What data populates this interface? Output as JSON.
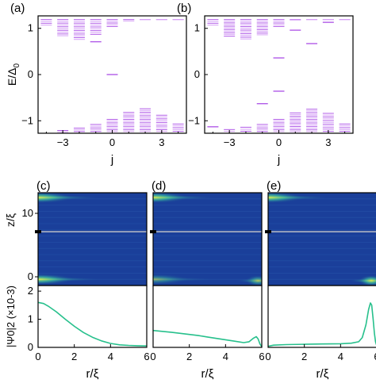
{
  "figure": {
    "watermark": "",
    "colors": {
      "level": "#b15be8",
      "level_light": "#d6a2f6",
      "curve": "#27c08c",
      "axis": "#000000",
      "map_background": "#1a3f9a",
      "map_hot": "#f2f046",
      "divider": "#c9c9c9"
    }
  },
  "chart_data": [
    {
      "id": "a",
      "panel_label": "(a)",
      "type": "scatter",
      "marker": "horizontal-dash",
      "xlabel": "j",
      "ylabel": "E/Δ0",
      "xlim": [
        -4.5,
        4.5
      ],
      "ylim": [
        -1.27,
        1.27
      ],
      "xticks": [
        -3,
        0,
        3
      ],
      "yticks": [
        -1,
        0,
        1
      ],
      "columns": [
        {
          "j": -4,
          "top": [
            1.07,
            1.19
          ],
          "bottom": [
            -1.27,
            -1.27
          ]
        },
        {
          "j": -3,
          "top": [
            0.84,
            1.19
          ],
          "bottom": [
            -1.27,
            -1.21
          ]
        },
        {
          "j": -2,
          "top": [
            0.76,
            1.19
          ],
          "bottom": [
            -1.27,
            -1.16
          ]
        },
        {
          "j": -1,
          "top": [
            0.87,
            1.19
          ],
          "bottom": [
            -1.27,
            -1.08
          ]
        },
        {
          "j": 0,
          "top": [
            1.04,
            1.19
          ],
          "bottom": [
            -1.27,
            -0.97
          ]
        },
        {
          "j": 1,
          "top": [
            1.16,
            1.19
          ],
          "bottom": [
            -1.27,
            -0.82
          ]
        },
        {
          "j": 2,
          "top": [
            1.19,
            1.19
          ],
          "bottom": [
            -1.27,
            -0.74
          ]
        },
        {
          "j": 3,
          "top": [
            1.19,
            1.19
          ],
          "bottom": [
            -1.27,
            -0.88
          ]
        },
        {
          "j": 4,
          "top": [
            1.19,
            1.19
          ],
          "bottom": [
            -1.27,
            -1.07
          ]
        }
      ],
      "isolated_levels": [
        {
          "j": -1,
          "E": 0.71
        },
        {
          "j": 0,
          "E": 0.0
        }
      ]
    },
    {
      "id": "b",
      "panel_label": "(b)",
      "type": "scatter",
      "marker": "horizontal-dash",
      "xlabel": "j",
      "ylabel": "",
      "xlim": [
        -4.5,
        4.5
      ],
      "ylim": [
        -1.27,
        1.27
      ],
      "xticks": [
        -3,
        0,
        3
      ],
      "yticks": [
        -1,
        0,
        1
      ],
      "columns": [
        {
          "j": -4,
          "top": [
            1.07,
            1.19
          ],
          "bottom": [
            -1.27,
            -1.27
          ]
        },
        {
          "j": -3,
          "top": [
            0.83,
            1.19
          ],
          "bottom": [
            -1.27,
            -1.19
          ]
        },
        {
          "j": -2,
          "top": [
            0.77,
            1.19
          ],
          "bottom": [
            -1.27,
            -1.14
          ]
        },
        {
          "j": -1,
          "top": [
            0.86,
            1.19
          ],
          "bottom": [
            -1.27,
            -1.08
          ]
        },
        {
          "j": 0,
          "top": [
            1.04,
            1.19
          ],
          "bottom": [
            -1.27,
            -0.97
          ]
        },
        {
          "j": 1,
          "top": [
            1.18,
            1.19
          ],
          "bottom": [
            -1.27,
            -0.83
          ]
        },
        {
          "j": 2,
          "top": [
            1.19,
            1.19
          ],
          "bottom": [
            -1.27,
            -0.75
          ]
        },
        {
          "j": 3,
          "top": [
            1.19,
            1.19
          ],
          "bottom": [
            -1.27,
            -0.84
          ]
        },
        {
          "j": 4,
          "top": [
            1.19,
            1.19
          ],
          "bottom": [
            -1.27,
            -1.07
          ]
        }
      ],
      "isolated_levels": [
        {
          "j": 1,
          "E": 0.96
        },
        {
          "j": 2,
          "E": 0.67
        },
        {
          "j": 3,
          "E": 1.13
        },
        {
          "j": 0,
          "E": 0.36
        },
        {
          "j": 0,
          "E": -0.36
        },
        {
          "j": -1,
          "E": -0.63
        },
        {
          "j": -4,
          "E": -1.13
        }
      ]
    },
    {
      "id": "c-map",
      "panel_label": "(c)",
      "type": "heatmap",
      "xlim": [
        0,
        6
      ],
      "ylim": [
        0,
        13.5
      ],
      "ylabel": "z/ξ",
      "yticks": [
        0,
        10
      ],
      "hotspots": [
        {
          "r": 0.0,
          "z": 12.8,
          "intensity": 1.0
        },
        {
          "r": 0.0,
          "z": 0.9,
          "intensity": 1.0
        }
      ]
    },
    {
      "id": "d-map",
      "panel_label": "(d)",
      "type": "heatmap",
      "xlim": [
        0,
        6
      ],
      "ylim": [
        0,
        13.5
      ],
      "yticks": [
        0,
        10
      ],
      "hotspots": [
        {
          "r": 0.0,
          "z": 12.8,
          "intensity": 1.0
        },
        {
          "r": 0.0,
          "z": 0.9,
          "intensity": 0.55
        },
        {
          "r": 5.8,
          "z": 0.7,
          "intensity": 0.7
        }
      ]
    },
    {
      "id": "e-map",
      "panel_label": "(e)",
      "type": "heatmap",
      "xlim": [
        0,
        6
      ],
      "ylim": [
        0,
        13.5
      ],
      "yticks": [
        0,
        10
      ],
      "hotspots": [
        {
          "r": 0.0,
          "z": 12.8,
          "intensity": 1.0
        },
        {
          "r": 5.7,
          "z": 0.7,
          "intensity": 1.0
        }
      ]
    },
    {
      "id": "c-curve",
      "type": "line",
      "xlabel": "r/ξ",
      "ylabel": "|Ψ0|2 (×10-3)",
      "xlim": [
        0,
        6
      ],
      "ylim": [
        0,
        2.2
      ],
      "xticks": [
        0,
        2,
        4,
        6
      ],
      "yticks": [
        0,
        1,
        2
      ],
      "x": [
        0,
        0.3,
        0.6,
        1.0,
        1.5,
        2.0,
        2.5,
        3.0,
        3.5,
        4.0,
        4.5,
        5.0,
        5.5,
        6.0
      ],
      "y": [
        1.6,
        1.56,
        1.45,
        1.27,
        1.0,
        0.75,
        0.53,
        0.36,
        0.23,
        0.14,
        0.09,
        0.07,
        0.06,
        0.05
      ]
    },
    {
      "id": "d-curve",
      "type": "line",
      "xlabel": "r/ξ",
      "xlim": [
        0,
        6
      ],
      "ylim": [
        0,
        2.2
      ],
      "xticks": [
        0,
        2,
        4,
        6
      ],
      "yticks": [
        0,
        1,
        2
      ],
      "x": [
        0,
        0.5,
        1.0,
        1.5,
        2.0,
        2.5,
        3.0,
        3.5,
        4.0,
        4.5,
        5.0,
        5.3,
        5.55,
        5.7,
        5.8,
        5.9,
        6.0
      ],
      "y": [
        0.6,
        0.57,
        0.54,
        0.5,
        0.46,
        0.42,
        0.37,
        0.32,
        0.27,
        0.22,
        0.17,
        0.2,
        0.33,
        0.38,
        0.3,
        0.12,
        0.02
      ]
    },
    {
      "id": "e-curve",
      "type": "line",
      "xlabel": "r/ξ",
      "xlim": [
        0,
        6
      ],
      "ylim": [
        0,
        2.2
      ],
      "xticks": [
        0,
        2,
        4,
        6
      ],
      "yticks": [
        0,
        1,
        2
      ],
      "x": [
        0,
        0.3,
        1.0,
        2.0,
        3.0,
        4.0,
        4.6,
        5.0,
        5.2,
        5.4,
        5.55,
        5.65,
        5.72,
        5.8,
        5.87,
        5.93,
        6.0
      ],
      "y": [
        0.04,
        0.08,
        0.1,
        0.11,
        0.12,
        0.13,
        0.15,
        0.2,
        0.35,
        0.8,
        1.35,
        1.58,
        1.5,
        1.0,
        0.5,
        0.2,
        0.05
      ]
    }
  ]
}
